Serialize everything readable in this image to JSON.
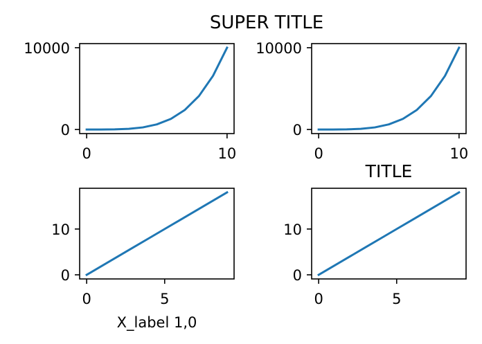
{
  "figure": {
    "suptitle": "SUPER TITLE",
    "line_color": "#1f77b4"
  },
  "chart_data": [
    {
      "type": "line",
      "title": "",
      "xlabel": "",
      "ylabel": "",
      "x": [
        0,
        1,
        2,
        3,
        4,
        5,
        6,
        7,
        8,
        9,
        10
      ],
      "series": [
        {
          "values": [
            0,
            1,
            16,
            81,
            256,
            625,
            1296,
            2401,
            4096,
            6561,
            10000
          ]
        }
      ],
      "xlim": [
        -0.5,
        10.5
      ],
      "ylim": [
        -500,
        10500
      ],
      "xticks": [
        0,
        10
      ],
      "yticks": [
        0,
        10000
      ],
      "grid": false
    },
    {
      "type": "line",
      "title": "",
      "xlabel": "",
      "ylabel": "",
      "x": [
        0,
        1,
        2,
        3,
        4,
        5,
        6,
        7,
        8,
        9,
        10
      ],
      "series": [
        {
          "values": [
            0,
            1,
            16,
            81,
            256,
            625,
            1296,
            2401,
            4096,
            6561,
            10000
          ]
        }
      ],
      "xlim": [
        -0.5,
        10.5
      ],
      "ylim": [
        -500,
        10500
      ],
      "xticks": [
        0,
        10
      ],
      "yticks": [
        0,
        10000
      ],
      "grid": false
    },
    {
      "type": "line",
      "title": "",
      "xlabel": "X_label 1,0",
      "ylabel": "",
      "x": [
        0,
        1,
        2,
        3,
        4,
        5,
        6,
        7,
        8,
        9
      ],
      "series": [
        {
          "values": [
            0,
            2,
            4,
            6,
            8,
            10,
            12,
            14,
            16,
            18
          ]
        }
      ],
      "xlim": [
        -0.45,
        9.45
      ],
      "ylim": [
        -0.9,
        18.9
      ],
      "xticks": [
        0,
        5
      ],
      "yticks": [
        0,
        10
      ],
      "grid": false
    },
    {
      "type": "line",
      "title": "TITLE",
      "xlabel": "",
      "ylabel": "",
      "x": [
        0,
        1,
        2,
        3,
        4,
        5,
        6,
        7,
        8,
        9
      ],
      "series": [
        {
          "values": [
            0,
            2,
            4,
            6,
            8,
            10,
            12,
            14,
            16,
            18
          ]
        }
      ],
      "xlim": [
        -0.45,
        9.45
      ],
      "ylim": [
        -0.9,
        18.9
      ],
      "xticks": [
        0,
        5
      ],
      "yticks": [
        0,
        10
      ],
      "grid": false
    }
  ]
}
